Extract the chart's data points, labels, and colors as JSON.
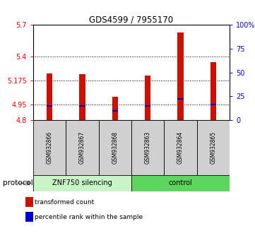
{
  "title": "GDS4599 / 7955170",
  "samples": [
    "GSM932866",
    "GSM932867",
    "GSM932868",
    "GSM932863",
    "GSM932864",
    "GSM932865"
  ],
  "red_bar_tops": [
    5.24,
    5.235,
    5.02,
    5.22,
    5.63,
    5.345
  ],
  "blue_markers": [
    4.935,
    4.932,
    4.886,
    4.932,
    4.998,
    4.948
  ],
  "bar_base": 4.8,
  "ylim_left": [
    4.8,
    5.7
  ],
  "ylim_right": [
    0,
    100
  ],
  "yticks_left": [
    4.8,
    4.95,
    5.175,
    5.4,
    5.7
  ],
  "yticks_right": [
    0,
    25,
    50,
    75,
    100
  ],
  "ytick_labels_left": [
    "4.8",
    "4.95",
    "5.175",
    "5.4",
    "5.7"
  ],
  "ytick_labels_right": [
    "0",
    "25",
    "50",
    "75",
    "100%"
  ],
  "hlines": [
    4.95,
    5.175,
    5.4
  ],
  "group1_label": "ZNF750 silencing",
  "group2_label": "control",
  "group1_indices": [
    0,
    1,
    2
  ],
  "group2_indices": [
    3,
    4,
    5
  ],
  "group1_color": "#c8f5c8",
  "group2_color": "#5cd65c",
  "protocol_label": "protocol",
  "bar_color": "#cc1100",
  "marker_color": "#0000cc",
  "legend_red": "transformed count",
  "legend_blue": "percentile rank within the sample",
  "bar_width": 0.18,
  "background_color": "#ffffff",
  "tick_label_area_color": "#d0d0d0"
}
